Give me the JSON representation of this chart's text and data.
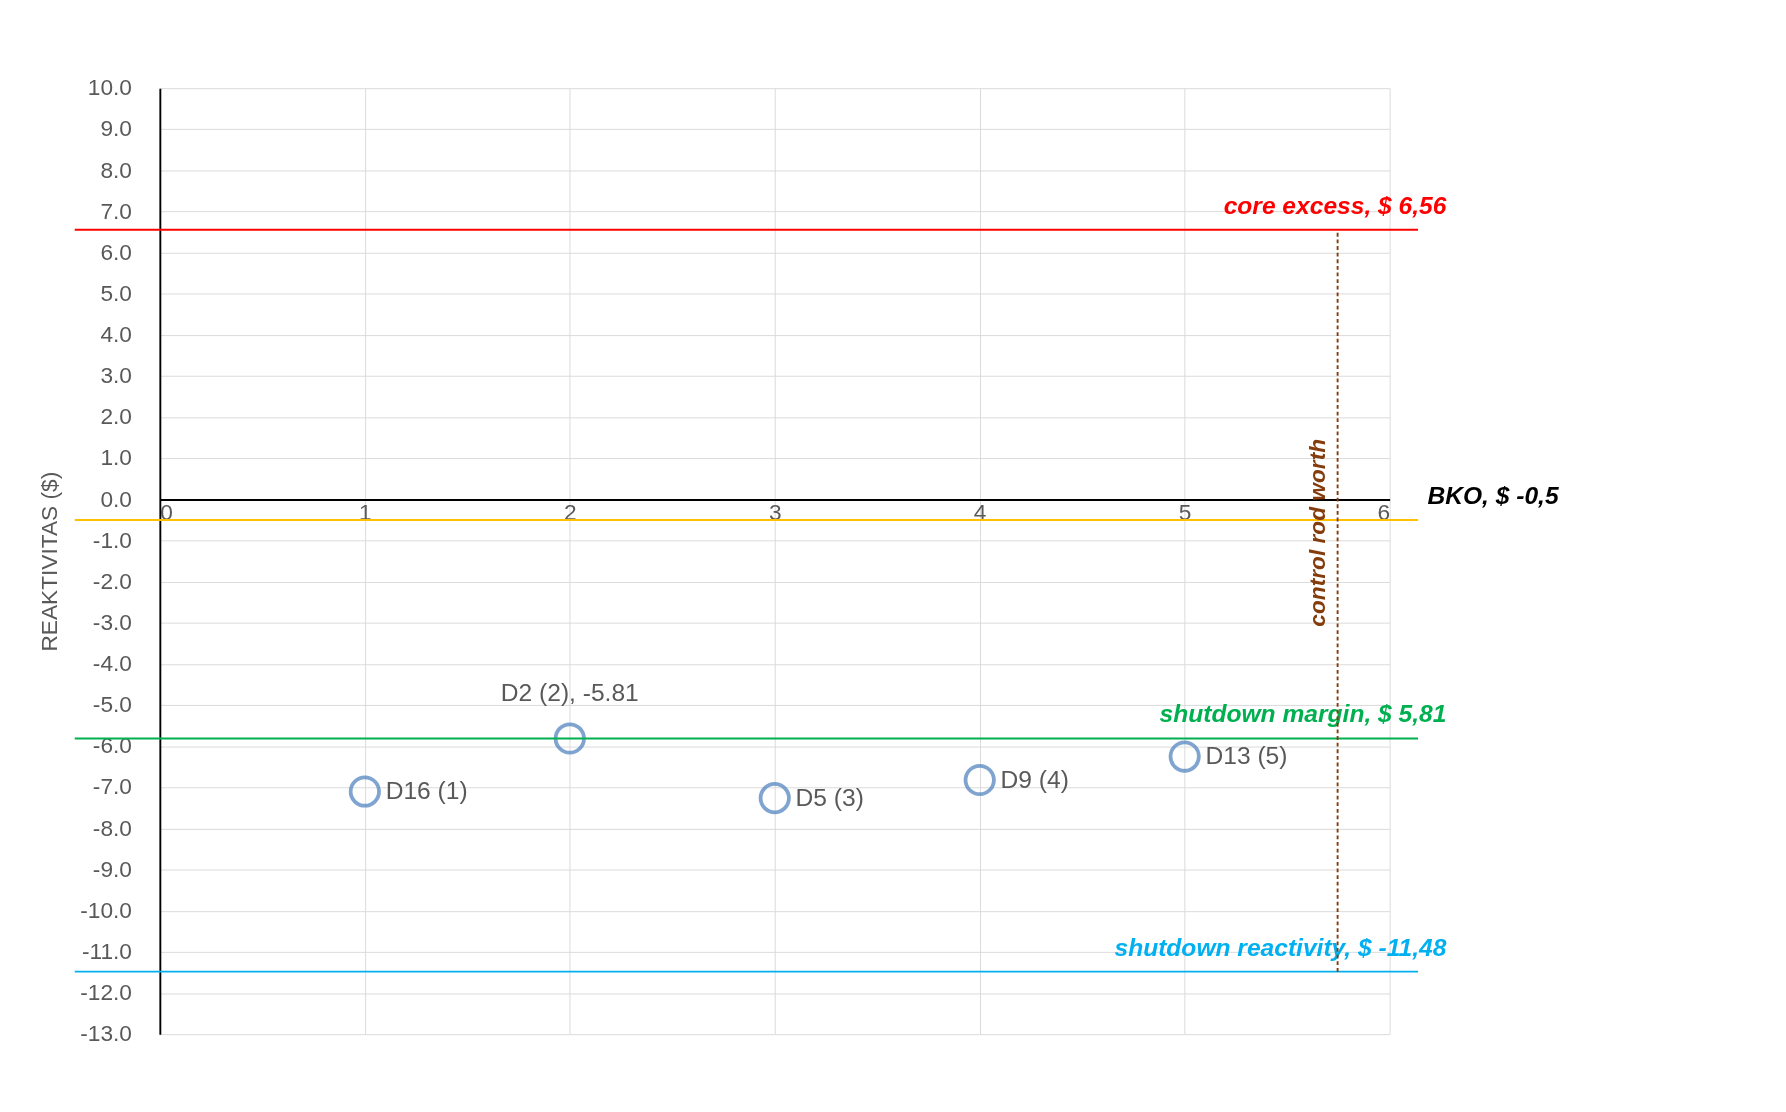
{
  "chart_data": {
    "type": "scatter",
    "ylabel": "REAKTIVITAS ($)",
    "series": [
      {
        "color": "#4a7ebb",
        "x": [
          1,
          2,
          3,
          4,
          5
        ],
        "values": [
          -7.1,
          -5.81,
          -7.26,
          -6.82,
          -6.25
        ],
        "value_labels": [
          "D16 (1)",
          "D2 (2), -5.81",
          "D5 (3)",
          "D9 (4)",
          "D13 (5)"
        ]
      }
    ],
    "marker": "circle",
    "xlim": [
      0,
      6
    ],
    "xticks": [
      0,
      1,
      2,
      3,
      4,
      5,
      6
    ],
    "ylim": [
      -13,
      10
    ],
    "yticks": [
      {
        "value": -13,
        "label": "-13.0"
      },
      {
        "value": -12,
        "label": "-12.0"
      },
      {
        "value": -11,
        "label": "-11.0"
      },
      {
        "value": -10,
        "label": "-10.0"
      },
      {
        "value": -9,
        "label": "-9.0"
      },
      {
        "value": -8,
        "label": "-8.0"
      },
      {
        "value": -7,
        "label": "-7.0"
      },
      {
        "value": -6,
        "label": "-6.0"
      },
      {
        "value": -5,
        "label": "-5.0"
      },
      {
        "value": -4,
        "label": "-4.0"
      },
      {
        "value": -3,
        "label": "-3.0"
      },
      {
        "value": -2,
        "label": "-2.0"
      },
      {
        "value": -1,
        "label": "-1.0"
      },
      {
        "value": 0,
        "label": "0.0"
      },
      {
        "value": 1,
        "label": "1.0"
      },
      {
        "value": 2,
        "label": "2.0"
      },
      {
        "value": 3,
        "label": "3.0"
      },
      {
        "value": 4,
        "label": "4.0"
      },
      {
        "value": 5,
        "label": "5.0"
      },
      {
        "value": 6,
        "label": "6.0"
      },
      {
        "value": 7,
        "label": "7.0"
      },
      {
        "value": 8,
        "label": "8.0"
      },
      {
        "value": 9,
        "label": "9.0"
      },
      {
        "value": 10,
        "label": "10.0"
      }
    ],
    "grid": true,
    "ref_lines": [
      {
        "axis": "y",
        "value": 6.56,
        "label": "core excess, $ 6,56",
        "color": "#ff0000"
      },
      {
        "axis": "y",
        "value": -0.5,
        "label": "BKO, $ -0,5",
        "color": "#ffc000"
      },
      {
        "axis": "y",
        "value": -5.81,
        "label": "shutdown margin, $ 5,81",
        "color": "#00b050"
      },
      {
        "axis": "y",
        "value": -11.48,
        "label": "shutdown reactivity, $ -11,48",
        "color": "#00b0f0"
      }
    ],
    "annotations": [
      "control rod worth"
    ]
  }
}
